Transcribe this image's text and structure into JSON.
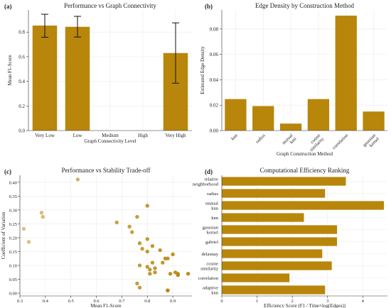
{
  "chart_data": [
    {
      "type": "bar",
      "panel_label": "(a)",
      "title": "Performance vs Graph Connectivity",
      "xlabel": "Graph Connectivity Level",
      "ylabel": "Mean F1-Score",
      "categories": [
        "Very Low",
        "Low",
        "Medium",
        "High",
        "Very High"
      ],
      "values": [
        0.853,
        0.843,
        null,
        null,
        0.63
      ],
      "error_low": [
        0.758,
        0.76,
        null,
        null,
        0.385
      ],
      "error_high": [
        0.945,
        0.928,
        null,
        null,
        0.875
      ],
      "ylim": [
        0,
        0.98
      ],
      "yticks": [
        0.0,
        0.2,
        0.4,
        0.6,
        0.8
      ],
      "ytick_labels": [
        "0.0",
        "0.2",
        "0.4",
        "0.6",
        "0.8"
      ],
      "grid": true,
      "bar_color": "#b8860b"
    },
    {
      "type": "bar",
      "panel_label": "(b)",
      "title": "Edge Density by Construction Method",
      "xlabel": "Graph Construction Method",
      "ylabel": "Estimated Edge Density",
      "categories": [
        "knn",
        "radius",
        "mutual\nknn",
        "cosine\nsimilarity",
        "correlation",
        "gaussian\nkernel"
      ],
      "values": [
        0.0248,
        0.0193,
        0.0055,
        0.0248,
        0.0905,
        0.015
      ],
      "ylim": [
        0,
        0.095
      ],
      "yticks": [
        0.0,
        0.02,
        0.04,
        0.06,
        0.08
      ],
      "ytick_labels": [
        "0.00",
        "0.02",
        "0.04",
        "0.06",
        "0.08"
      ],
      "grid": true,
      "bar_color": "#b8860b"
    },
    {
      "type": "scatter",
      "panel_label": "(c)",
      "title": "Performance vs Stability Trade-off",
      "xlabel": "Mean F1-Score",
      "ylabel": "Coefficient of Variation",
      "x": [
        0.527,
        0.385,
        0.39,
        0.315,
        0.335,
        0.68,
        0.76,
        0.73,
        0.74,
        0.77,
        0.8,
        0.8,
        0.78,
        0.77,
        0.8,
        0.82,
        0.85,
        0.87,
        0.88,
        0.9,
        0.86,
        0.82,
        0.83,
        0.8,
        0.81,
        0.83,
        0.89,
        0.91,
        0.92,
        0.92,
        0.96,
        0.81,
        0.76,
        0.77,
        0.88,
        0.88
      ],
      "y": [
        0.41,
        0.29,
        0.275,
        0.232,
        0.185,
        0.255,
        0.275,
        0.24,
        0.22,
        0.18,
        0.315,
        0.195,
        0.16,
        0.1,
        0.15,
        0.17,
        0.155,
        0.125,
        0.125,
        0.14,
        0.11,
        0.11,
        0.09,
        0.095,
        0.085,
        0.075,
        0.07,
        0.075,
        0.07,
        0.065,
        0.07,
        0.07,
        0.035,
        0.02,
        0.01,
        0.01
      ],
      "xlim": [
        0.3,
        0.975
      ],
      "ylim": [
        -0.01,
        0.425
      ],
      "xticks": [
        0.3,
        0.4,
        0.5,
        0.6,
        0.7,
        0.8,
        0.9
      ],
      "xtick_labels": [
        "0.3",
        "0.4",
        "0.5",
        "0.6",
        "0.7",
        "0.8",
        "0.9"
      ],
      "yticks": [
        0.0,
        0.05,
        0.1,
        0.15,
        0.2,
        0.25,
        0.3,
        0.35,
        0.4
      ],
      "ytick_labels": [
        "0.00",
        "0.05",
        "0.10",
        "0.15",
        "0.20",
        "0.25",
        "0.30",
        "0.35",
        "0.40"
      ],
      "grid": true,
      "point_color": "#b8860b"
    },
    {
      "type": "bar",
      "orientation": "horizontal",
      "panel_label": "(d)",
      "title": "Computational Efficiency Ranking",
      "xlabel": "Efficiency Score (F1 / Time×log(Edges))",
      "ylabel": "",
      "categories": [
        "relative\nneighborhood",
        "radius",
        "mutual\nknn",
        "knn",
        "gaussian\nkernel",
        "gabriel",
        "delaunay",
        "cosine\nsimilarity",
        "correlation",
        "adaptive\nknn"
      ],
      "values": [
        3.52,
        2.93,
        4.6,
        2.33,
        3.27,
        3.27,
        2.85,
        3.12,
        1.92,
        2.93
      ],
      "xlim": [
        0,
        4.7
      ],
      "xticks": [
        0,
        1,
        2,
        3,
        4
      ],
      "xtick_labels": [
        "0",
        "1",
        "2",
        "3",
        "4"
      ],
      "grid": true,
      "bar_color": "#b8860b"
    }
  ]
}
